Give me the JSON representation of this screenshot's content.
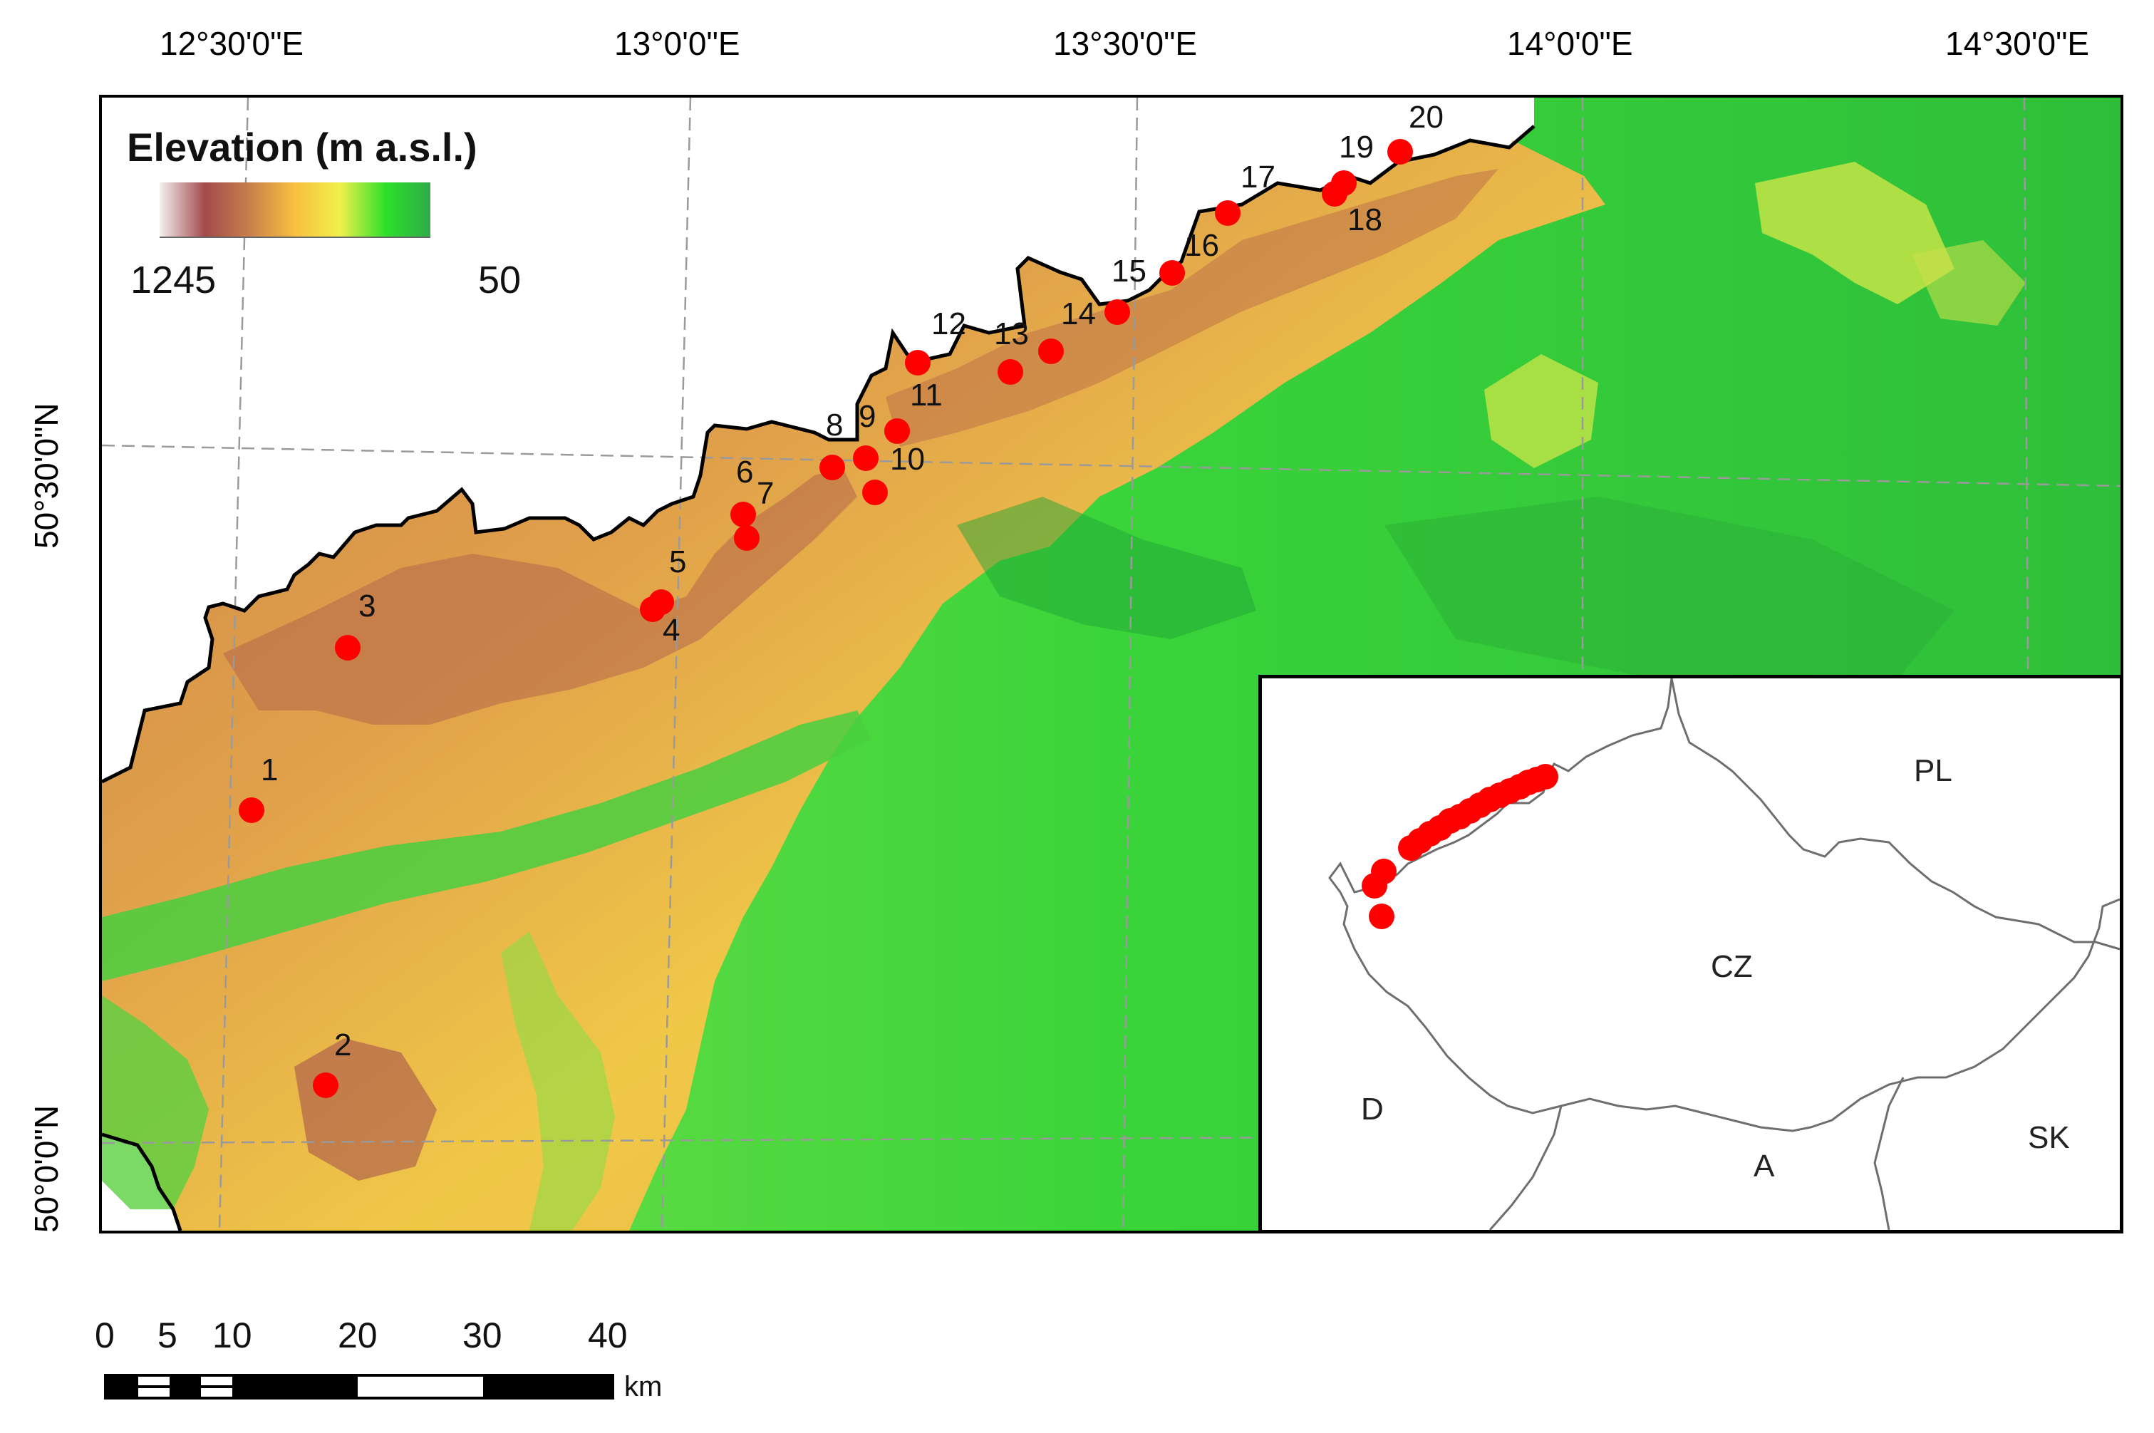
{
  "longitude_labels": [
    "12°30'0\"E",
    "13°0'0\"E",
    "13°30'0\"E",
    "14°0'0\"E",
    "14°30'0\"E"
  ],
  "latitude_labels": [
    "50°30'0\"N",
    "50°0'0\"N"
  ],
  "legend": {
    "title": "Elevation (m a.s.l.)",
    "max_label": "1245",
    "min_label": "50",
    "colors": [
      "#f4f0ee",
      "#a24a4c",
      "#c8804c",
      "#f8c040",
      "#f0f04a",
      "#2ee02a",
      "#2eab4a"
    ]
  },
  "sites": [
    "1",
    "2",
    "3",
    "4",
    "5",
    "6",
    "7",
    "8",
    "9",
    "10",
    "11",
    "12",
    "13",
    "14",
    "15",
    "16",
    "17",
    "18",
    "19",
    "20"
  ],
  "site_color": "#ff0000",
  "inset": {
    "labels": {
      "pl": "PL",
      "cz": "CZ",
      "d": "D",
      "a": "A",
      "sk": "SK"
    }
  },
  "scale_bar": {
    "ticks": [
      "0",
      "5",
      "10",
      "20",
      "30",
      "40"
    ],
    "unit": "km"
  }
}
